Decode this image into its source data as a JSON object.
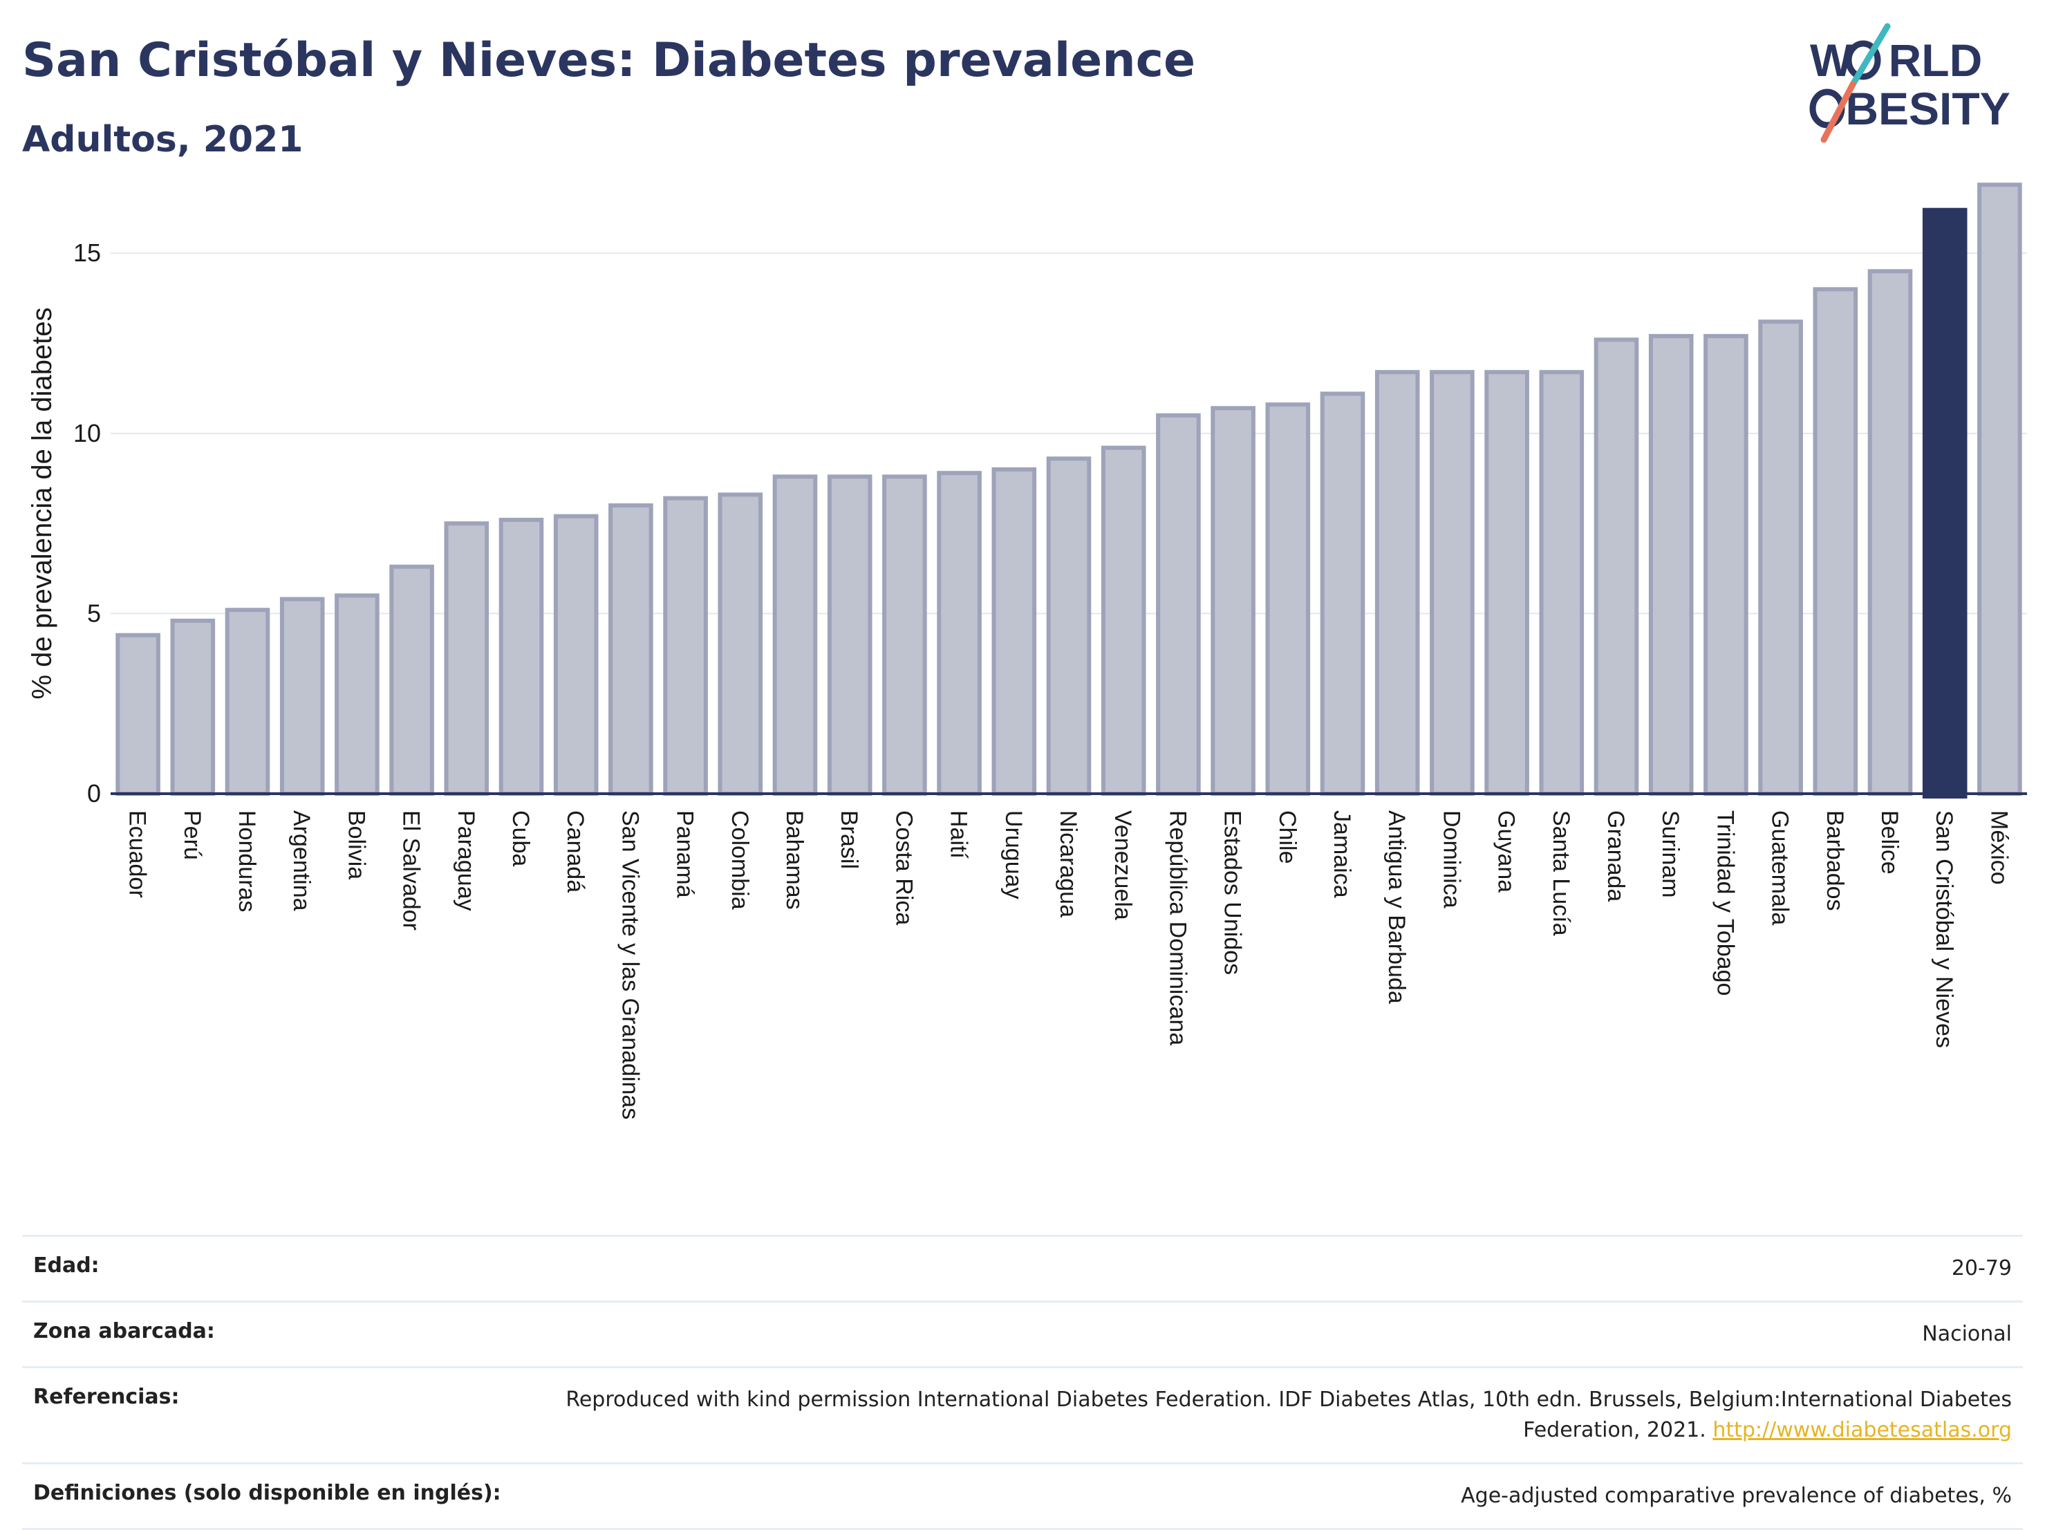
{
  "header": {
    "title": "San Cristóbal y Nieves: Diabetes prevalence",
    "subtitle": "Adultos, 2021"
  },
  "logo": {
    "line1": "WORLD",
    "line2": "OBESITY",
    "colors": {
      "text": "#2b3660",
      "slash_teal": "#3fb8c0",
      "slash_coral": "#e8735a"
    }
  },
  "colors": {
    "bar": "#bfc2cf",
    "bar_border": "#9ea3ba",
    "highlight": "#2b3660",
    "grid": "#e5e7ec",
    "axis": "#2b3660"
  },
  "chart_data": {
    "type": "bar",
    "ylabel": "% de prevalencia de la diabetes",
    "xlabel": "",
    "ylim": [
      0,
      17
    ],
    "yticks": [
      0,
      5,
      10,
      15
    ],
    "grid": true,
    "highlight_category": "San Cristóbal y Nieves",
    "categories": [
      "Ecuador",
      "Perú",
      "Honduras",
      "Argentina",
      "Bolivia",
      "El Salvador",
      "Paraguay",
      "Cuba",
      "Canadá",
      "San Vicente y las Granadinas",
      "Panamá",
      "Colombia",
      "Bahamas",
      "Brasil",
      "Costa Rica",
      "Haití",
      "Uruguay",
      "Nicaragua",
      "Venezuela",
      "República Dominicana",
      "Estados Unidos",
      "Chile",
      "Jamaica",
      "Antigua y Barbuda",
      "Dominica",
      "Guyana",
      "Santa Lucía",
      "Granada",
      "Surinam",
      "Trinidad y Tobago",
      "Guatemala",
      "Barbados",
      "Belice",
      "San Cristóbal y Nieves",
      "México"
    ],
    "values": [
      4.4,
      4.8,
      5.1,
      5.4,
      5.5,
      6.3,
      7.5,
      7.6,
      7.7,
      8.0,
      8.2,
      8.3,
      8.8,
      8.8,
      8.8,
      8.9,
      9.0,
      9.3,
      9.6,
      10.5,
      10.7,
      10.8,
      11.1,
      11.7,
      11.7,
      11.7,
      11.7,
      12.6,
      12.7,
      12.7,
      13.1,
      14.0,
      14.5,
      16.2,
      16.9
    ]
  },
  "meta": [
    {
      "label": "Edad:",
      "value": "20-79"
    },
    {
      "label": "Zona abarcada:",
      "value": "Nacional"
    },
    {
      "label": "Referencias:",
      "value": "Reproduced with kind permission International Diabetes Federation.  IDF Diabetes Atlas, 10th edn. Brussels, Belgium:International Diabetes Federation, 2021.",
      "link": "http://www.diabetesatlas.org"
    },
    {
      "label": "Definiciones (solo disponible en inglés):",
      "value": "Age-adjusted comparative prevalence of diabetes, %"
    }
  ]
}
